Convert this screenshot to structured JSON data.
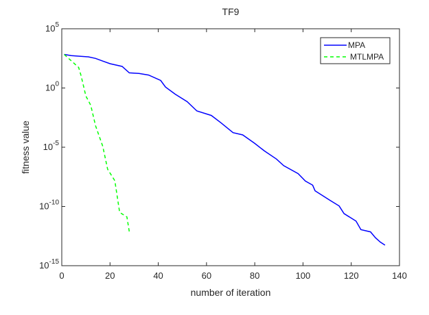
{
  "chart_data": {
    "type": "line",
    "title": "TF9",
    "xlabel": "number of iteration",
    "ylabel": "fitness value",
    "xlim": [
      0,
      140
    ],
    "ylim": [
      1e-15,
      100000.0
    ],
    "yscale": "log",
    "grid": false,
    "legend_position": "top-right",
    "xticks": [
      0,
      20,
      40,
      60,
      80,
      100,
      120,
      140
    ],
    "xtick_labels": [
      "0",
      "20",
      "40",
      "60",
      "80",
      "100",
      "120",
      "140"
    ],
    "yticks": [
      100000.0,
      1,
      1e-05,
      1e-10,
      1e-15
    ],
    "ytick_labels": [
      {
        "base": "10",
        "exp": "5"
      },
      {
        "base": "10",
        "exp": "0"
      },
      {
        "base": "10",
        "exp": "-5"
      },
      {
        "base": "10",
        "exp": "-10"
      },
      {
        "base": "10",
        "exp": "-15"
      }
    ],
    "series": [
      {
        "name": "MPA",
        "color": "#0000ff",
        "style": "solid",
        "x": [
          1,
          4,
          11,
          14,
          17,
          20,
          25,
          28,
          32,
          36,
          41,
          43,
          47,
          52,
          56,
          62,
          66,
          71,
          75,
          80,
          84,
          89,
          92,
          98,
          101,
          104,
          105,
          111,
          115,
          117,
          122,
          124,
          128,
          130,
          132,
          134
        ],
        "y": [
          676,
          537,
          427,
          316,
          186,
          112,
          66,
          19,
          17,
          12.3,
          4.3,
          1.2,
          0.3,
          0.07,
          0.0115,
          0.0048,
          0.00115,
          0.00017,
          0.00011,
          2.1e-05,
          4.9e-06,
          1e-06,
          2.8e-07,
          5.9e-08,
          1.4e-08,
          6.3e-09,
          2.1e-09,
          3.5e-10,
          1.1e-10,
          2.5e-11,
          5.8e-12,
          1.1e-12,
          7.2e-13,
          2.3e-13,
          1e-13,
          5.4e-14
        ]
      },
      {
        "name": "MTLMPA",
        "color": "#00ff00",
        "style": "dashed",
        "x": [
          1,
          7,
          8,
          10,
          12,
          14,
          17,
          19,
          22,
          24,
          27,
          28
        ],
        "y": [
          676,
          54,
          11,
          0.21,
          0.035,
          0.00065,
          1.2e-05,
          1.4e-07,
          1.5e-08,
          3.2e-11,
          1.3e-11,
          7.2e-13
        ]
      }
    ]
  }
}
